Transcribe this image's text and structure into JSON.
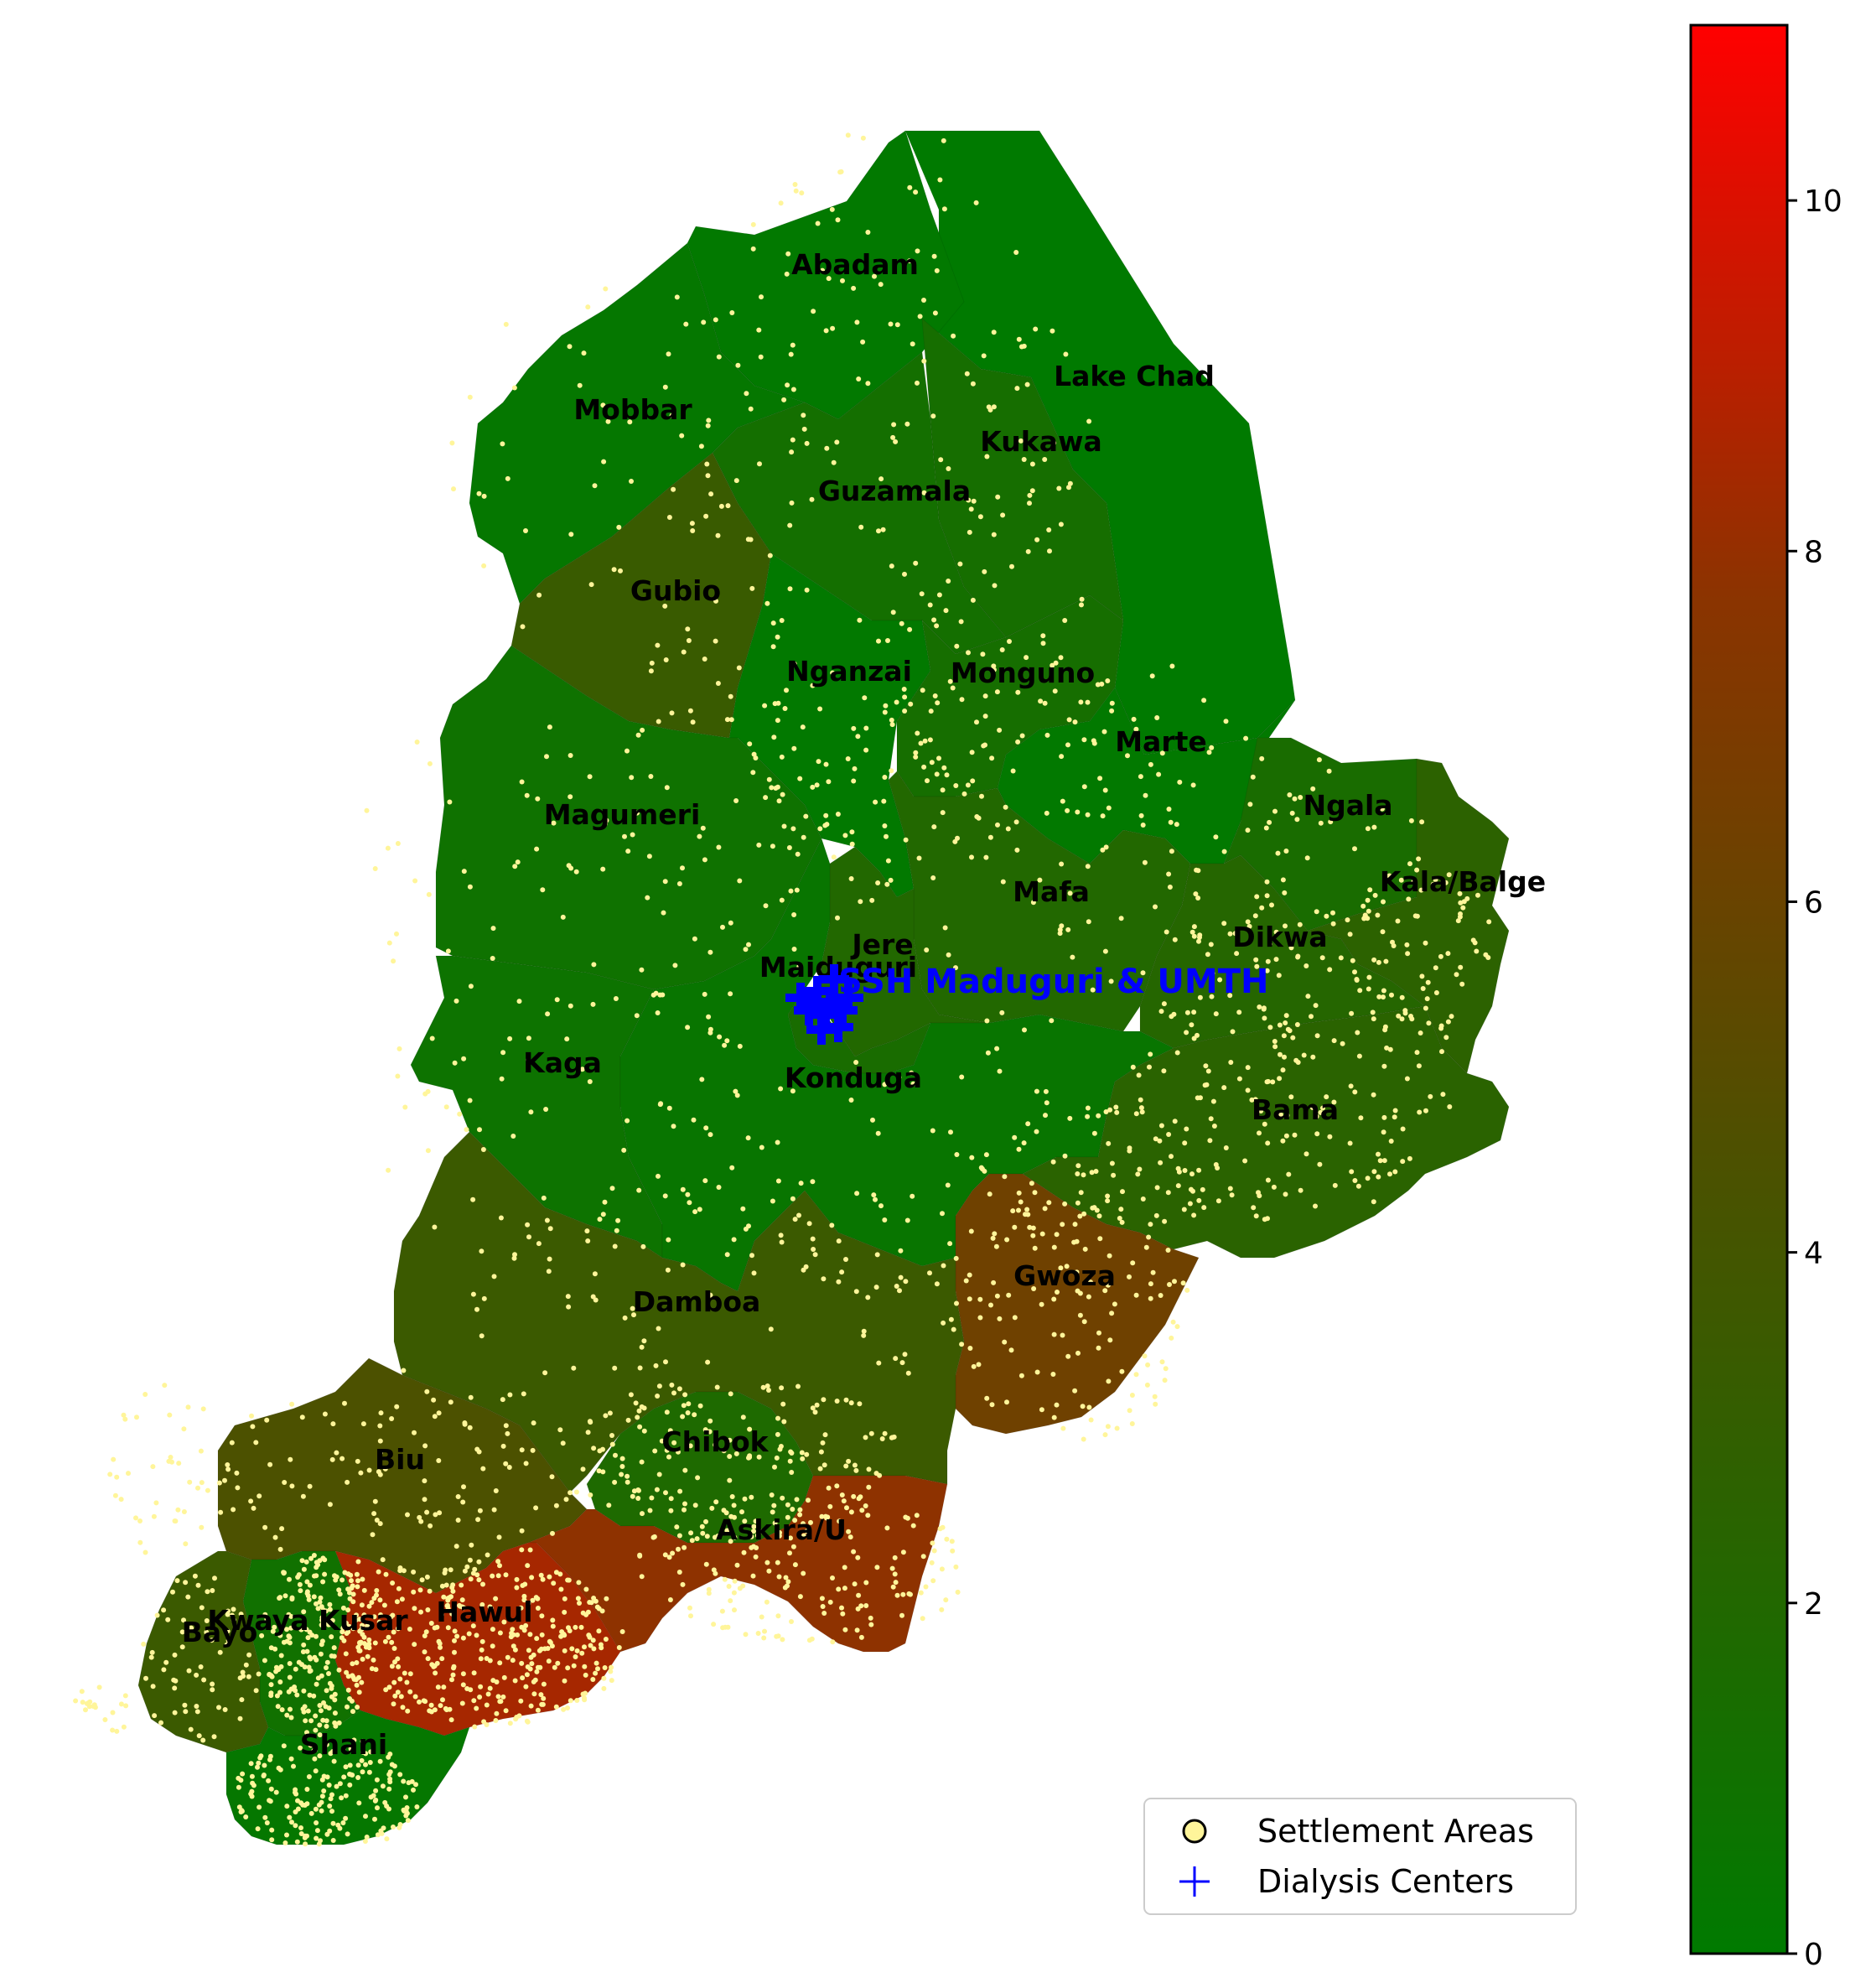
{
  "map": {
    "lgas": [
      {
        "name": "Abadam",
        "value": 0.1
      },
      {
        "name": "Mobbar",
        "value": 0.3
      },
      {
        "name": "Lake Chad",
        "value": 0.0
      },
      {
        "name": "Kukawa",
        "value": 1.3
      },
      {
        "name": "Guzamala",
        "value": 1.2
      },
      {
        "name": "Gubio",
        "value": 3.4
      },
      {
        "name": "Nganzai",
        "value": 0.1
      },
      {
        "name": "Monguno",
        "value": 1.3
      },
      {
        "name": "Marte",
        "value": 0.1
      },
      {
        "name": "Ngala",
        "value": 1.5
      },
      {
        "name": "Kala/Balge",
        "value": 2.6
      },
      {
        "name": "Magumeri",
        "value": 0.9
      },
      {
        "name": "Mafa",
        "value": 2.0
      },
      {
        "name": "Dikwa",
        "value": 2.2
      },
      {
        "name": "Jere",
        "value": 2.0
      },
      {
        "name": "Maiduguri",
        "value": 1.5
      },
      {
        "name": "Kaga",
        "value": 0.8
      },
      {
        "name": "Konduga",
        "value": 0.5
      },
      {
        "name": "Bama",
        "value": 2.5
      },
      {
        "name": "Gwoza",
        "value": 6.3
      },
      {
        "name": "Damboa",
        "value": 3.5
      },
      {
        "name": "Chibok",
        "value": 1.8
      },
      {
        "name": "Biu",
        "value": 4.5
      },
      {
        "name": "Askira/U",
        "value": 7.8
      },
      {
        "name": "Hawul",
        "value": 8.5
      },
      {
        "name": "Kwaya Kusar",
        "value": 1.0
      },
      {
        "name": "Bayo",
        "value": 3.5
      },
      {
        "name": "Shani",
        "value": 0.3
      }
    ],
    "dialysis_center_label": "SSH Maduguri & UMTH"
  },
  "colorbar": {
    "min": 0,
    "max": 11,
    "ticks": [
      "0",
      "2",
      "4",
      "6",
      "8",
      "10"
    ],
    "color_low": "#007a00",
    "color_mid": "#5c4a00",
    "color_high": "#ff0000"
  },
  "legend": {
    "settlement_label": "Settlement Areas",
    "dialysis_label": "Dialysis Centers",
    "settlement_color": "#fff59a",
    "dialysis_color": "#0000ff"
  }
}
